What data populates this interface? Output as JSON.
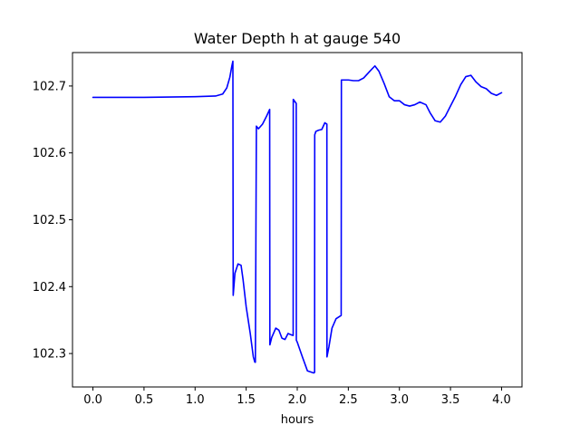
{
  "chart_data": {
    "type": "line",
    "title": "Water Depth h at gauge 540",
    "xlabel": "hours",
    "ylabel": "",
    "xlim": [
      -0.2,
      4.2
    ],
    "ylim": [
      102.25,
      102.75
    ],
    "xticks": [
      0.0,
      0.5,
      1.0,
      1.5,
      2.0,
      2.5,
      3.0,
      3.5,
      4.0
    ],
    "xtick_labels": [
      "0.0",
      "0.5",
      "1.0",
      "1.5",
      "2.0",
      "2.5",
      "3.0",
      "3.5",
      "4.0"
    ],
    "yticks": [
      102.3,
      102.4,
      102.5,
      102.6,
      102.7
    ],
    "ytick_labels": [
      "102.3",
      "102.4",
      "102.5",
      "102.6",
      "102.7"
    ],
    "grid": false,
    "series": [
      {
        "color": "#0000ff",
        "x": [
          0.0,
          0.5,
          1.0,
          1.2,
          1.27,
          1.31,
          1.34,
          1.36,
          1.37,
          1.373,
          1.39,
          1.42,
          1.45,
          1.47,
          1.5,
          1.54,
          1.57,
          1.585,
          1.59,
          1.6,
          1.62,
          1.66,
          1.7,
          1.73,
          1.732,
          1.75,
          1.79,
          1.82,
          1.85,
          1.88,
          1.91,
          1.94,
          1.96,
          1.961,
          1.99,
          1.991,
          2.0,
          2.05,
          2.1,
          2.16,
          2.163,
          2.17,
          2.171,
          2.18,
          2.181,
          2.21,
          2.24,
          2.27,
          2.29,
          2.291,
          2.31,
          2.34,
          2.38,
          2.43,
          2.432,
          2.5,
          2.55,
          2.6,
          2.65,
          2.71,
          2.76,
          2.8,
          2.85,
          2.9,
          2.95,
          3.0,
          3.05,
          3.1,
          3.15,
          3.2,
          3.26,
          3.3,
          3.35,
          3.4,
          3.45,
          3.5,
          3.55,
          3.6,
          3.65,
          3.7,
          3.75,
          3.8,
          3.85,
          3.9,
          3.95,
          4.0
        ],
        "y": [
          102.683,
          102.683,
          102.684,
          102.685,
          102.688,
          102.697,
          102.713,
          102.73,
          102.737,
          102.387,
          102.42,
          102.434,
          102.432,
          102.41,
          102.37,
          102.33,
          102.295,
          102.287,
          102.287,
          102.64,
          102.636,
          102.643,
          102.655,
          102.665,
          102.313,
          102.324,
          102.338,
          102.335,
          102.323,
          102.321,
          102.33,
          102.328,
          102.327,
          102.68,
          102.674,
          102.32,
          102.317,
          102.295,
          102.274,
          102.271,
          102.271,
          102.272,
          102.627,
          102.631,
          102.632,
          102.634,
          102.635,
          102.645,
          102.643,
          102.295,
          102.31,
          102.338,
          102.352,
          102.357,
          102.709,
          102.709,
          102.708,
          102.708,
          102.712,
          102.722,
          102.73,
          102.722,
          102.704,
          102.684,
          102.678,
          102.678,
          102.672,
          102.67,
          102.672,
          102.676,
          102.672,
          102.66,
          102.648,
          102.646,
          102.655,
          102.67,
          102.685,
          102.702,
          102.714,
          102.716,
          102.706,
          102.699,
          102.696,
          102.689,
          102.686,
          102.69
        ]
      }
    ]
  }
}
